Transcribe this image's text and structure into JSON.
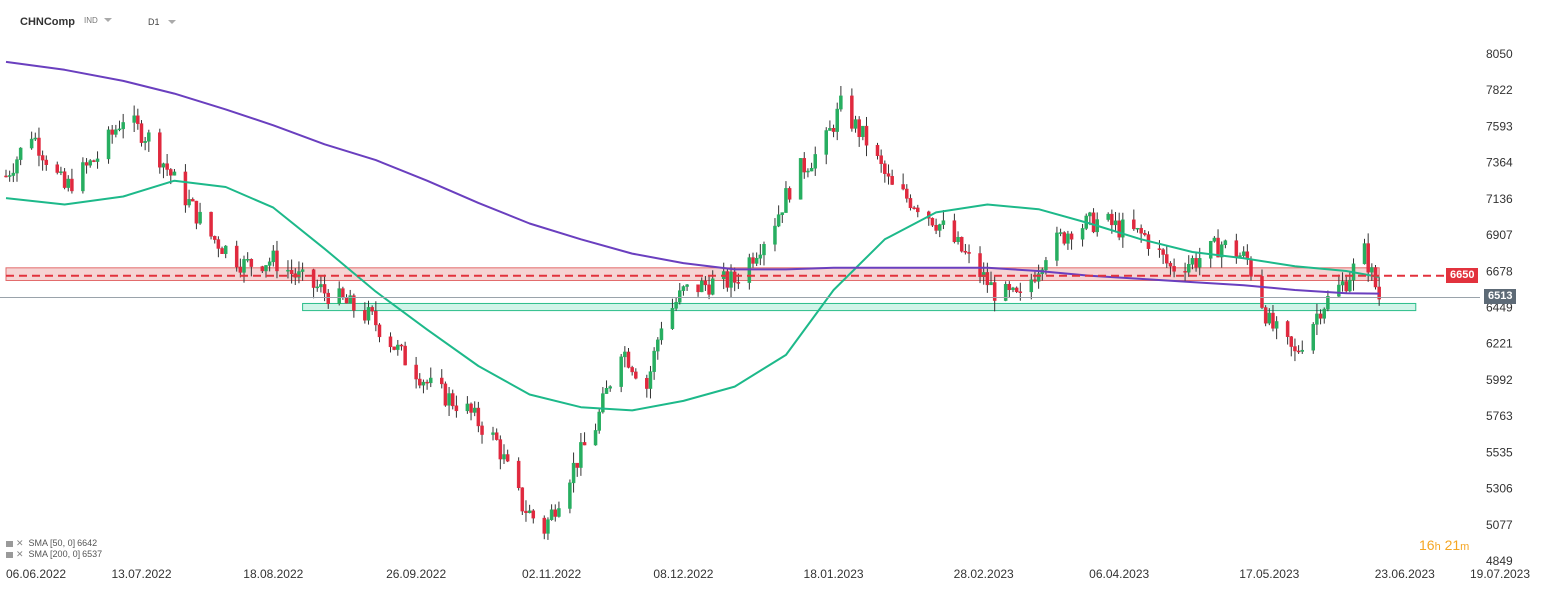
{
  "toolbar": {
    "symbol": "CHNComp",
    "instrument_type": "IND",
    "timeframe": "D1"
  },
  "legend": [
    {
      "label": "SMA [50, 0]",
      "value": "6642"
    },
    {
      "label": "SMA [200, 0]",
      "value": "6537"
    }
  ],
  "countdown": {
    "hours": "16",
    "hours_unit": "h",
    "minutes": "21",
    "minutes_unit": "m"
  },
  "price_tags": {
    "resistance": "6650",
    "last": "6513"
  },
  "colors": {
    "up": "#27ae60",
    "down": "#e0293e",
    "sma50": "#1db98a",
    "sma200": "#6a3fbf",
    "resistance_zone": "#f2c6c6",
    "support_zone": "#c8f2e4",
    "tag_red": "#e2323d",
    "tag_last": "#5d6a76"
  },
  "chart_data": {
    "type": "candlestick",
    "symbol": "CHNComp",
    "timeframe": "D1",
    "x_ticks": [
      "06.06.2022",
      "13.07.2022",
      "18.08.2022",
      "26.09.2022",
      "02.11.2022",
      "08.12.2022",
      "18.01.2023",
      "28.02.2023",
      "06.04.2023",
      "17.05.2023",
      "23.06.2023",
      "19.07.2023"
    ],
    "y_ticks": [
      4849,
      5077,
      5306,
      5535,
      5763,
      5992,
      6221,
      6449,
      6678,
      6907,
      7136,
      7364,
      7593,
      7822,
      8050
    ],
    "ylim": [
      4849,
      8050
    ],
    "close_path": [
      [
        "2022-06-06",
        7280
      ],
      [
        "2022-06-13",
        7550
      ],
      [
        "2022-06-22",
        7200
      ],
      [
        "2022-07-01",
        7400
      ],
      [
        "2022-07-08",
        7650
      ],
      [
        "2022-07-15",
        7520
      ],
      [
        "2022-07-22",
        7250
      ],
      [
        "2022-08-01",
        6900
      ],
      [
        "2022-08-10",
        6720
      ],
      [
        "2022-08-18",
        6750
      ],
      [
        "2022-08-26",
        6620
      ],
      [
        "2022-09-05",
        6500
      ],
      [
        "2022-09-14",
        6380
      ],
      [
        "2022-09-22",
        6150
      ],
      [
        "2022-09-30",
        5950
      ],
      [
        "2022-10-10",
        5800
      ],
      [
        "2022-10-18",
        5600
      ],
      [
        "2022-10-25",
        5200
      ],
      [
        "2022-10-31",
        5050
      ],
      [
        "2022-11-07",
        5400
      ],
      [
        "2022-11-14",
        5700
      ],
      [
        "2022-11-21",
        6200
      ],
      [
        "2022-11-28",
        5950
      ],
      [
        "2022-12-02",
        6350
      ],
      [
        "2022-12-08",
        6550
      ],
      [
        "2022-12-15",
        6600
      ],
      [
        "2022-12-22",
        6620
      ],
      [
        "2023-01-01",
        6950
      ],
      [
        "2023-01-08",
        7300
      ],
      [
        "2023-01-15",
        7450
      ],
      [
        "2023-01-20",
        7720
      ],
      [
        "2023-01-27",
        7500
      ],
      [
        "2023-02-03",
        7200
      ],
      [
        "2023-02-10",
        7100
      ],
      [
        "2023-02-17",
        6950
      ],
      [
        "2023-02-24",
        6750
      ],
      [
        "2023-03-03",
        6550
      ],
      [
        "2023-03-10",
        6500
      ],
      [
        "2023-03-17",
        6800
      ],
      [
        "2023-03-24",
        6950
      ],
      [
        "2023-04-01",
        7000
      ],
      [
        "2023-04-06",
        6950
      ],
      [
        "2023-04-13",
        6900
      ],
      [
        "2023-04-20",
        6700
      ],
      [
        "2023-04-27",
        6750
      ],
      [
        "2023-05-04",
        6850
      ],
      [
        "2023-05-11",
        6750
      ],
      [
        "2023-05-17",
        6350
      ],
      [
        "2023-05-24",
        6150
      ],
      [
        "2023-05-31",
        6450
      ],
      [
        "2023-06-07",
        6620
      ],
      [
        "2023-06-12",
        6800
      ],
      [
        "2023-06-16",
        6513
      ]
    ],
    "series": [
      {
        "name": "SMA [50, 0]",
        "values": [
          [
            "2022-06-06",
            7140
          ],
          [
            "2022-06-22",
            7100
          ],
          [
            "2022-07-08",
            7150
          ],
          [
            "2022-07-22",
            7250
          ],
          [
            "2022-08-05",
            7210
          ],
          [
            "2022-08-18",
            7080
          ],
          [
            "2022-09-01",
            6820
          ],
          [
            "2022-09-15",
            6550
          ],
          [
            "2022-09-29",
            6310
          ],
          [
            "2022-10-13",
            6080
          ],
          [
            "2022-10-27",
            5900
          ],
          [
            "2022-11-10",
            5820
          ],
          [
            "2022-11-24",
            5800
          ],
          [
            "2022-12-08",
            5860
          ],
          [
            "2022-12-22",
            5950
          ],
          [
            "2023-01-05",
            6150
          ],
          [
            "2023-01-18",
            6560
          ],
          [
            "2023-02-01",
            6880
          ],
          [
            "2023-02-15",
            7050
          ],
          [
            "2023-03-01",
            7100
          ],
          [
            "2023-03-15",
            7070
          ],
          [
            "2023-03-29",
            6980
          ],
          [
            "2023-04-12",
            6880
          ],
          [
            "2023-04-26",
            6800
          ],
          [
            "2023-05-10",
            6760
          ],
          [
            "2023-05-24",
            6710
          ],
          [
            "2023-06-07",
            6680
          ],
          [
            "2023-06-16",
            6642
          ]
        ]
      },
      {
        "name": "SMA [200, 0]",
        "values": [
          [
            "2022-06-06",
            8000
          ],
          [
            "2022-06-22",
            7950
          ],
          [
            "2022-07-08",
            7880
          ],
          [
            "2022-07-22",
            7800
          ],
          [
            "2022-08-05",
            7700
          ],
          [
            "2022-08-18",
            7600
          ],
          [
            "2022-09-01",
            7480
          ],
          [
            "2022-09-15",
            7380
          ],
          [
            "2022-09-29",
            7250
          ],
          [
            "2022-10-13",
            7110
          ],
          [
            "2022-10-27",
            6980
          ],
          [
            "2022-11-10",
            6880
          ],
          [
            "2022-11-24",
            6790
          ],
          [
            "2022-12-08",
            6730
          ],
          [
            "2022-12-22",
            6690
          ],
          [
            "2023-01-05",
            6690
          ],
          [
            "2023-01-18",
            6700
          ],
          [
            "2023-02-01",
            6700
          ],
          [
            "2023-02-15",
            6700
          ],
          [
            "2023-03-01",
            6700
          ],
          [
            "2023-03-15",
            6680
          ],
          [
            "2023-03-29",
            6650
          ],
          [
            "2023-04-12",
            6630
          ],
          [
            "2023-04-26",
            6610
          ],
          [
            "2023-05-10",
            6590
          ],
          [
            "2023-05-24",
            6560
          ],
          [
            "2023-06-07",
            6540
          ],
          [
            "2023-06-16",
            6537
          ]
        ]
      }
    ],
    "annotations": [
      {
        "kind": "zone",
        "color": "red",
        "start": "2022-06-06",
        "end": "2023-06-16",
        "from": 6620,
        "to": 6700
      },
      {
        "kind": "zone",
        "color": "green",
        "start": "2022-08-26",
        "end": "2023-06-26",
        "from": 6430,
        "to": 6475
      },
      {
        "kind": "dashed_line",
        "color": "red",
        "start": "2022-06-06",
        "end": "2023-07-10",
        "value": 6650
      },
      {
        "kind": "horizontal_line",
        "color": "gray",
        "value": 6513
      }
    ]
  }
}
